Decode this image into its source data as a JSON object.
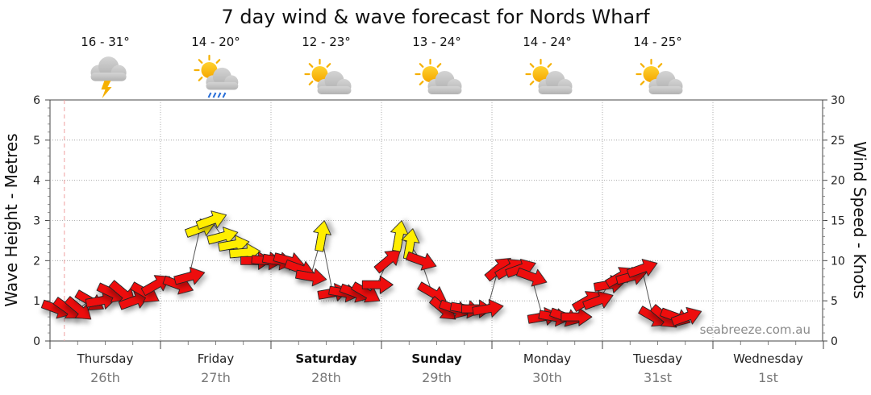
{
  "chart_data": {
    "type": "line",
    "title": "7 day wind & wave forecast for Nords Wharf",
    "ylabel_left": "Wave Height - Metres",
    "ylabel_right": "Wind Speed - Knots",
    "ylim_left": [
      0,
      6
    ],
    "ylim_right": [
      0,
      30
    ],
    "yticks_left": [
      "0",
      "1",
      "2",
      "3",
      "4",
      "5",
      "6"
    ],
    "yticks_right": [
      "0",
      "5",
      "10",
      "15",
      "20",
      "25",
      "30"
    ],
    "grid": true,
    "days": [
      {
        "name": "Thursday",
        "date": "26th",
        "temp": "16 - 31°",
        "weather_icon": "storm-icon",
        "bold": false
      },
      {
        "name": "Friday",
        "date": "27th",
        "temp": "14 - 20°",
        "weather_icon": "sun-cloud-rain-icon",
        "bold": false
      },
      {
        "name": "Saturday",
        "date": "28th",
        "temp": "12 - 23°",
        "weather_icon": "sun-cloud-icon",
        "bold": true
      },
      {
        "name": "Sunday",
        "date": "29th",
        "temp": "13 - 24°",
        "weather_icon": "sun-cloud-icon",
        "bold": true
      },
      {
        "name": "Monday",
        "date": "30th",
        "temp": "14 - 24°",
        "weather_icon": "sun-cloud-icon",
        "bold": false
      },
      {
        "name": "Tuesday",
        "date": "31st",
        "temp": "14 - 25°",
        "weather_icon": "sun-cloud-icon",
        "bold": false
      },
      {
        "name": "Wednesday",
        "date": "1st",
        "temp": "",
        "weather_icon": "",
        "bold": false
      }
    ],
    "series": [
      {
        "unit": "knots",
        "x_day": [
          0.0,
          0.1,
          0.2,
          0.3,
          0.4,
          0.5,
          0.6,
          0.7,
          0.8,
          0.9,
          1.1,
          1.2,
          1.3,
          1.4,
          1.5,
          1.6,
          1.7,
          1.8,
          1.9,
          2.0,
          2.1,
          2.2,
          2.3,
          2.4,
          2.5,
          2.6,
          2.7,
          2.8,
          2.9,
          3.0,
          3.1,
          3.2,
          3.3,
          3.4,
          3.5,
          3.6,
          3.7,
          3.8,
          3.9,
          4.0,
          4.1,
          4.2,
          4.3,
          4.4,
          4.5,
          4.6,
          4.7,
          4.8,
          4.9,
          5.0,
          5.1,
          5.2,
          5.3,
          5.4,
          5.5,
          5.6,
          5.7
        ],
        "values": [
          4,
          4,
          4,
          5,
          5,
          6,
          6,
          5,
          6,
          7,
          7,
          8,
          14,
          15,
          13,
          12,
          11,
          10,
          10,
          10,
          10,
          9,
          8,
          13,
          6,
          6,
          6,
          6,
          7,
          10,
          13,
          12,
          10,
          6,
          4,
          4,
          4,
          4,
          4,
          9,
          9,
          9,
          8,
          3,
          3,
          3,
          3,
          5,
          5,
          7,
          8,
          8,
          9,
          3,
          3,
          3,
          3
        ],
        "wind_level": [
          "s",
          "s",
          "s",
          "s",
          "s",
          "s",
          "s",
          "s",
          "s",
          "s",
          "s",
          "s",
          "l",
          "l",
          "l",
          "l",
          "l",
          "s",
          "s",
          "s",
          "s",
          "s",
          "s",
          "l",
          "s",
          "s",
          "s",
          "s",
          "s",
          "s",
          "l",
          "l",
          "s",
          "s",
          "s",
          "s",
          "s",
          "s",
          "s",
          "s",
          "s",
          "s",
          "s",
          "s",
          "s",
          "s",
          "s",
          "s",
          "s",
          "s",
          "s",
          "s",
          "s",
          "s",
          "s",
          "s",
          "s"
        ]
      }
    ],
    "legend": "none",
    "watermark": "seabreeze.com.au",
    "colors": {
      "strong_wind": "#ee1111",
      "light_wind": "#ffee00",
      "now_line": "#f0a0a0",
      "grid": "#9a9a9a"
    }
  }
}
